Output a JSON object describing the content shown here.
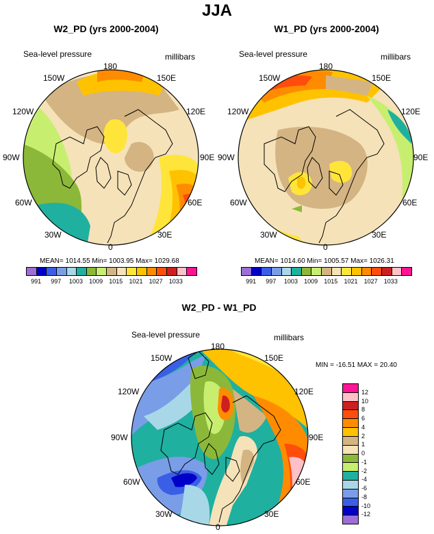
{
  "title": "JJA",
  "units_label": "millibars",
  "variable_label": "Sea-level pressure",
  "panels": [
    {
      "title": "W2_PD (yrs 2000-2004)",
      "stats": "MEAN= 1014.55  Min= 1003.95  Max= 1029.68"
    },
    {
      "title": "W1_PD (yrs 2000-2004)",
      "stats": "MEAN= 1014.60  Min= 1005.57  Max= 1026.31"
    },
    {
      "title": "W2_PD - W1_PD",
      "stats": "MIN = -16.51 MAX =  20.40"
    }
  ],
  "longitudes": {
    "lon180": "180",
    "lon150E": "150E",
    "lon120E": "120E",
    "lon90E": "90E",
    "lon60E": "60E",
    "lon30E": "30E",
    "lon0": "0",
    "lon30W": "30W",
    "lon60W": "60W",
    "lon90W": "90W",
    "lon120W": "120W",
    "lon150W": "150W"
  },
  "abs_scale": {
    "labels": [
      "991",
      "997",
      "1003",
      "1009",
      "1015",
      "1021",
      "1027",
      "1033"
    ],
    "colors": [
      "#9b6fd6",
      "#0000c8",
      "#3a5fe6",
      "#7a9de8",
      "#a8d8e8",
      "#1fb0a0",
      "#8cb839",
      "#c8ee70",
      "#d4b483",
      "#f5e2b8",
      "#ffe53a",
      "#ffc200",
      "#ff8c00",
      "#ff4d0c",
      "#cc2020",
      "#ffc0c8",
      "#ff1493"
    ]
  },
  "diff_scale": {
    "labels": [
      "12",
      "10",
      "8",
      "6",
      "4",
      "2",
      "1",
      "0",
      "-1",
      "-2",
      "-4",
      "-6",
      "-8",
      "-10",
      "-12"
    ],
    "colors": [
      "#ff1493",
      "#ffc0c8",
      "#cc2020",
      "#ff4d0c",
      "#ff8c00",
      "#ffc200",
      "#d4b483",
      "#f5e2b8",
      "#8cb839",
      "#c8ee70",
      "#1fb0a0",
      "#a8d8e8",
      "#7a9de8",
      "#3a5fe6",
      "#0000c8",
      "#9b6fd6"
    ]
  }
}
